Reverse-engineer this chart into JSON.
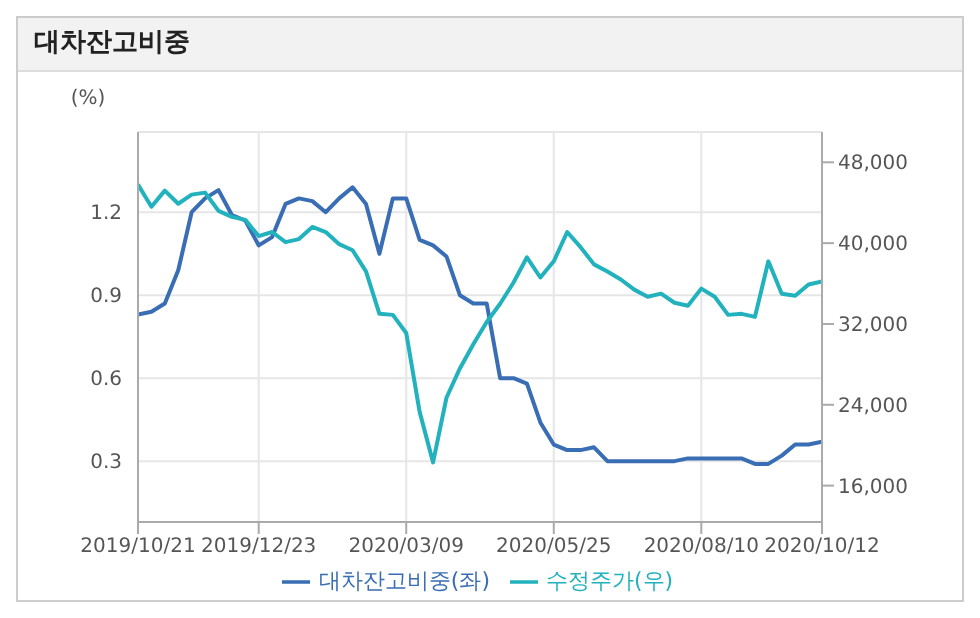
{
  "chart_data": {
    "type": "line",
    "title": "대차잔고비중",
    "ylabel": "(%)",
    "x": [
      "2019-10-21",
      "2019-10-28",
      "2019-11-04",
      "2019-11-11",
      "2019-11-18",
      "2019-11-25",
      "2019-12-02",
      "2019-12-09",
      "2019-12-16",
      "2019-12-23",
      "2019-12-30",
      "2020-01-06",
      "2020-01-13",
      "2020-01-20",
      "2020-01-27",
      "2020-02-03",
      "2020-02-10",
      "2020-02-17",
      "2020-02-24",
      "2020-03-02",
      "2020-03-09",
      "2020-03-16",
      "2020-03-23",
      "2020-03-30",
      "2020-04-06",
      "2020-04-13",
      "2020-04-20",
      "2020-04-27",
      "2020-05-04",
      "2020-05-11",
      "2020-05-18",
      "2020-05-25",
      "2020-06-01",
      "2020-06-08",
      "2020-06-15",
      "2020-06-22",
      "2020-06-29",
      "2020-07-06",
      "2020-07-13",
      "2020-07-20",
      "2020-07-27",
      "2020-08-03",
      "2020-08-10",
      "2020-08-17",
      "2020-08-24",
      "2020-08-31",
      "2020-09-07",
      "2020-09-14",
      "2020-09-21",
      "2020-09-28",
      "2020-10-05",
      "2020-10-12"
    ],
    "series": [
      {
        "name": "대차잔고비중(좌)",
        "color": "#3a6eb4",
        "values": [
          0.83,
          0.84,
          0.87,
          0.99,
          1.2,
          1.25,
          1.28,
          1.19,
          1.17,
          1.08,
          1.11,
          1.23,
          1.25,
          1.24,
          1.2,
          1.25,
          1.29,
          1.23,
          1.05,
          1.25,
          1.25,
          1.1,
          1.08,
          1.04,
          0.9,
          0.87,
          0.87,
          0.6,
          0.6,
          0.58,
          0.44,
          0.36,
          0.34,
          0.34,
          0.35,
          0.3,
          0.3,
          0.3,
          0.3,
          0.3,
          0.3,
          0.31,
          0.31,
          0.31,
          0.31,
          0.31,
          0.29,
          0.29,
          0.32,
          0.36,
          0.36,
          0.37
        ]
      },
      {
        "name": "수정주가(우)",
        "color": "#22b2bd",
        "axis": "y2",
        "values": [
          45800,
          43600,
          45200,
          43900,
          44800,
          45000,
          43200,
          42600,
          42300,
          40700,
          41100,
          40100,
          40400,
          41600,
          41100,
          39900,
          39300,
          37200,
          33000,
          32900,
          31100,
          23300,
          18300,
          24700,
          27600,
          30000,
          32200,
          34000,
          36100,
          38600,
          36600,
          38200,
          41100,
          39600,
          37900,
          37200,
          36400,
          35400,
          34700,
          35000,
          34100,
          33800,
          35500,
          34700,
          32900,
          33000,
          32700,
          38200,
          35000,
          34800,
          35900,
          36200
        ]
      }
    ],
    "xlim": [
      "2019-10-21",
      "2020-10-12"
    ],
    "xticks": [
      {
        "value": "2019-10-21",
        "label": "2019/10/21"
      },
      {
        "value": "2019-12-23",
        "label": "2019/12/23"
      },
      {
        "value": "2020-03-09",
        "label": "2020/03/09"
      },
      {
        "value": "2020-05-25",
        "label": "2020/05/25"
      },
      {
        "value": "2020-08-10",
        "label": "2020/08/10"
      },
      {
        "value": "2020-10-12",
        "label": "2020/10/12"
      }
    ],
    "ylim": [
      0.08,
      1.49
    ],
    "yticks": [
      0.3,
      0.6,
      0.9,
      1.2
    ],
    "y2lim": [
      12400,
      51000
    ],
    "y2ticks": [
      {
        "value": 16000,
        "label": "16,000"
      },
      {
        "value": 24000,
        "label": "24,000"
      },
      {
        "value": 32000,
        "label": "32,000"
      },
      {
        "value": 40000,
        "label": "40,000"
      },
      {
        "value": 48000,
        "label": "48,000"
      }
    ],
    "grid": true,
    "legend": "bottom",
    "marker": "none",
    "line_style": "solid"
  }
}
